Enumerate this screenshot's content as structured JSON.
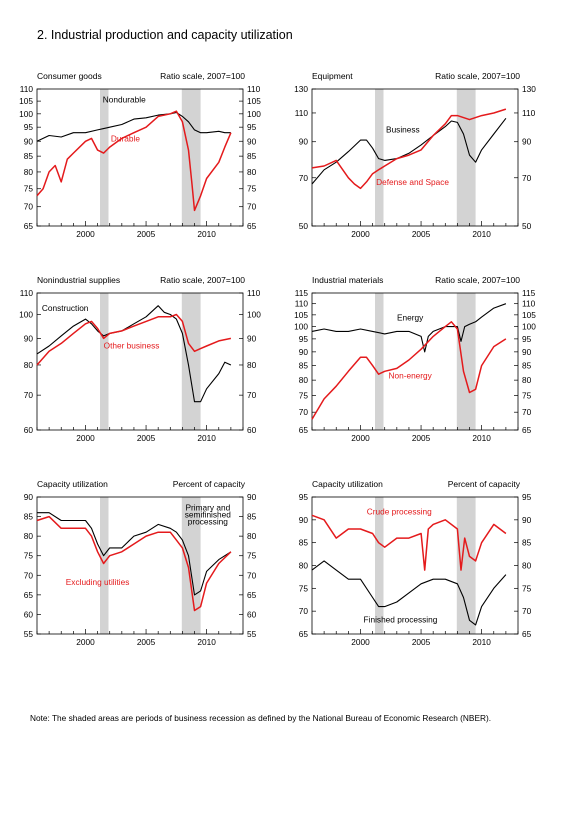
{
  "title": "2.  Industrial production and capacity utilization",
  "note": "Note: The shaded areas are periods of business recession as defined by the National Bureau of Economic Research (NBER).",
  "colors": {
    "black_series": "#000000",
    "red_series": "#e41a1c",
    "recession_shade": "#d3d3d3"
  },
  "chart_data": [
    {
      "id": "consumer-goods",
      "type": "line",
      "title": "Consumer goods",
      "scale_label": "Ratio scale, 2007=100",
      "xlim": [
        1996,
        2013
      ],
      "ylim": [
        65,
        110
      ],
      "log_scale": true,
      "xticks": [
        2000,
        2005,
        2010
      ],
      "xtick_labels": [
        "2000",
        "2005",
        "2010"
      ],
      "yticks": [
        65,
        70,
        75,
        80,
        85,
        90,
        95,
        100,
        105,
        110
      ],
      "ytick_labels": [
        "65",
        "70",
        "75",
        "80",
        "85",
        "90",
        "95",
        "100",
        "105",
        "110"
      ],
      "recessions": [
        [
          2001.2,
          2001.9
        ],
        [
          2007.95,
          2009.5
        ]
      ],
      "series": [
        {
          "name": "Nondurable",
          "color": "#000000",
          "x": [
            1996,
            1997,
            1998,
            1999,
            2000,
            2001,
            2001.5,
            2002,
            2003,
            2004,
            2005,
            2006,
            2007,
            2007.5,
            2008,
            2008.5,
            2009,
            2009.5,
            2010,
            2011,
            2011.5,
            2012
          ],
          "y": [
            90,
            92,
            91.5,
            93,
            93,
            94,
            94.5,
            95,
            96,
            98,
            98.5,
            99.5,
            100,
            100.5,
            99,
            97,
            94,
            93,
            93,
            93.5,
            93,
            93
          ]
        },
        {
          "name": "Durable",
          "color": "#e41a1c",
          "x": [
            1996,
            1996.5,
            1997,
            1997.5,
            1998,
            1998.5,
            1999,
            2000,
            2000.5,
            2001,
            2001.5,
            2002,
            2003,
            2004,
            2005,
            2006,
            2007,
            2007.5,
            2008,
            2008.5,
            2008.8,
            2009,
            2009.5,
            2010,
            2011,
            2011.5,
            2012
          ],
          "y": [
            73,
            75,
            80,
            82,
            77,
            84,
            86,
            90,
            91,
            87,
            86,
            88,
            91,
            93,
            95,
            99,
            100,
            101,
            97,
            87,
            76,
            69,
            73,
            78,
            83,
            88,
            93
          ]
        }
      ],
      "labels": [
        {
          "text": "Nondurable",
          "color": "#000000",
          "x": 2003.2,
          "y": 104.5
        },
        {
          "text": "Durable",
          "color": "#e41a1c",
          "x": 2003.3,
          "y": 90
        }
      ]
    },
    {
      "id": "equipment",
      "type": "line",
      "title": "Equipment",
      "scale_label": "Ratio scale, 2007=100",
      "xlim": [
        1996,
        2013
      ],
      "ylim": [
        50,
        130
      ],
      "log_scale": true,
      "xticks": [
        2000,
        2005,
        2010
      ],
      "xtick_labels": [
        "2000",
        "2005",
        "2010"
      ],
      "yticks": [
        50,
        70,
        90,
        110,
        130
      ],
      "ytick_labels": [
        "50",
        "70",
        "90",
        "110",
        "130"
      ],
      "recessions": [
        [
          2001.2,
          2001.9
        ],
        [
          2007.95,
          2009.5
        ]
      ],
      "series": [
        {
          "name": "Business",
          "color": "#000000",
          "x": [
            1996,
            1997,
            1998,
            1999,
            2000,
            2000.5,
            2001,
            2001.5,
            2002,
            2003,
            2004,
            2005,
            2006,
            2007,
            2007.5,
            2008,
            2008.5,
            2009,
            2009.5,
            2010,
            2011,
            2012
          ],
          "y": [
            67,
            74,
            78,
            84,
            91,
            91,
            86,
            80,
            79,
            80,
            83,
            88,
            94,
            100,
            104,
            103,
            95,
            82,
            78,
            85,
            95,
            106
          ]
        },
        {
          "name": "Defense and Space",
          "color": "#e41a1c",
          "x": [
            1996,
            1997,
            1998,
            1999,
            1999.5,
            2000,
            2000.5,
            2001,
            2001.5,
            2002,
            2003,
            2004,
            2005,
            2006,
            2007,
            2007.5,
            2008,
            2009,
            2010,
            2011,
            2012
          ],
          "y": [
            75,
            76,
            79,
            70,
            67,
            65,
            68,
            72,
            74,
            76,
            80,
            82,
            85,
            94,
            102,
            108,
            108,
            105,
            108,
            110,
            113
          ]
        }
      ],
      "labels": [
        {
          "text": "Business",
          "color": "#000000",
          "x": 2003.5,
          "y": 96
        },
        {
          "text": "Defense and Space",
          "color": "#e41a1c",
          "x": 2004.3,
          "y": 66.5
        }
      ]
    },
    {
      "id": "nonindustrial-supplies",
      "type": "line",
      "title": "Nonindustrial supplies",
      "scale_label": "Ratio scale, 2007=100",
      "xlim": [
        1996,
        2013
      ],
      "ylim": [
        60,
        110
      ],
      "log_scale": true,
      "xticks": [
        2000,
        2005,
        2010
      ],
      "xtick_labels": [
        "2000",
        "2005",
        "2010"
      ],
      "yticks": [
        60,
        70,
        80,
        90,
        100,
        110
      ],
      "ytick_labels": [
        "60",
        "70",
        "80",
        "90",
        "100",
        "110"
      ],
      "recessions": [
        [
          2001.2,
          2001.9
        ],
        [
          2007.95,
          2009.5
        ]
      ],
      "series": [
        {
          "name": "Construction",
          "color": "#000000",
          "x": [
            1996,
            1997,
            1998,
            1999,
            2000,
            2000.5,
            2001,
            2001.5,
            2002,
            2003,
            2004,
            2005,
            2006,
            2006.5,
            2007,
            2007.5,
            2008,
            2008.5,
            2009,
            2009.5,
            2010,
            2011,
            2011.5,
            2012
          ],
          "y": [
            84,
            87,
            91,
            95,
            98,
            96,
            93,
            91,
            92,
            93,
            96,
            99,
            104,
            101,
            100,
            98,
            92,
            80,
            68,
            68,
            72,
            77,
            81,
            80
          ]
        },
        {
          "name": "Other business",
          "color": "#e41a1c",
          "x": [
            1996,
            1997,
            1998,
            1999,
            2000,
            2000.5,
            2001,
            2001.5,
            2002,
            2003,
            2004,
            2005,
            2006,
            2007,
            2007.5,
            2008,
            2008.5,
            2009,
            2009.5,
            2010,
            2011,
            2012
          ],
          "y": [
            80,
            85,
            88,
            92,
            96,
            97,
            94,
            90,
            92,
            93,
            95,
            97,
            99,
            99,
            100,
            97,
            88,
            85,
            86,
            87,
            89,
            90
          ]
        }
      ],
      "labels": [
        {
          "text": "Construction",
          "color": "#000000",
          "x": 1996.4,
          "y": 101.5,
          "align": "start"
        },
        {
          "text": "Other business",
          "color": "#e41a1c",
          "x": 2003.8,
          "y": 86
        }
      ]
    },
    {
      "id": "industrial-materials",
      "type": "line",
      "title": "Industrial materials",
      "scale_label": "Ratio scale, 2007=100",
      "xlim": [
        1996,
        2013
      ],
      "ylim": [
        65,
        115
      ],
      "log_scale": true,
      "xticks": [
        2000,
        2005,
        2010
      ],
      "xtick_labels": [
        "2000",
        "2005",
        "2010"
      ],
      "yticks": [
        65,
        70,
        75,
        80,
        85,
        90,
        95,
        100,
        105,
        110,
        115
      ],
      "ytick_labels": [
        "65",
        "70",
        "75",
        "80",
        "85",
        "90",
        "95",
        "100",
        "105",
        "110",
        "115"
      ],
      "recessions": [
        [
          2001.2,
          2001.9
        ],
        [
          2007.95,
          2009.5
        ]
      ],
      "series": [
        {
          "name": "Energy",
          "color": "#000000",
          "x": [
            1996,
            1997,
            1998,
            1999,
            2000,
            2001,
            2002,
            2003,
            2004,
            2005,
            2005.3,
            2005.6,
            2006,
            2007,
            2008,
            2008.3,
            2008.6,
            2009,
            2009.5,
            2010,
            2011,
            2012
          ],
          "y": [
            98,
            99,
            98,
            98,
            99,
            98,
            97,
            98,
            98,
            96,
            90,
            96,
            98,
            100,
            100,
            94,
            100,
            101,
            102,
            104,
            108,
            110
          ]
        },
        {
          "name": "Non-energy",
          "color": "#e41a1c",
          "x": [
            1996,
            1997,
            1998,
            1999,
            2000,
            2000.5,
            2001,
            2001.5,
            2002,
            2003,
            2004,
            2005,
            2006,
            2007,
            2007.5,
            2008,
            2008.5,
            2009,
            2009.5,
            2010,
            2011,
            2012
          ],
          "y": [
            68,
            74,
            78,
            83,
            88,
            88,
            85,
            82,
            83,
            84,
            87,
            91,
            96,
            100,
            102,
            99,
            83,
            76,
            77,
            85,
            92,
            95
          ]
        }
      ],
      "labels": [
        {
          "text": "Energy",
          "color": "#000000",
          "x": 2004.1,
          "y": 102.5
        },
        {
          "text": "Non-energy",
          "color": "#e41a1c",
          "x": 2004.1,
          "y": 80.5
        }
      ]
    },
    {
      "id": "capacity-utilization-left",
      "type": "line",
      "title": "Capacity utilization",
      "scale_label": "Percent of capacity",
      "xlim": [
        1996,
        2013
      ],
      "ylim": [
        55,
        90
      ],
      "log_scale": false,
      "xticks": [
        2000,
        2005,
        2010
      ],
      "xtick_labels": [
        "2000",
        "2005",
        "2010"
      ],
      "yticks": [
        55,
        60,
        65,
        70,
        75,
        80,
        85,
        90
      ],
      "ytick_labels": [
        "55",
        "60",
        "65",
        "70",
        "75",
        "80",
        "85",
        "90"
      ],
      "recessions": [
        [
          2001.2,
          2001.9
        ],
        [
          2007.95,
          2009.5
        ]
      ],
      "series": [
        {
          "name": "Primary and semifinished processing",
          "color": "#000000",
          "x": [
            1996,
            1997,
            1998,
            1999,
            2000,
            2000.5,
            2001,
            2001.5,
            2002,
            2003,
            2004,
            2005,
            2006,
            2007,
            2007.5,
            2008,
            2008.5,
            2009,
            2009.5,
            2010,
            2011,
            2012
          ],
          "y": [
            86,
            86,
            84,
            84,
            84,
            82,
            78,
            75,
            77,
            77,
            80,
            81,
            83,
            82,
            81,
            79,
            75,
            65,
            66,
            71,
            74,
            76
          ]
        },
        {
          "name": "Excluding utilities",
          "color": "#e41a1c",
          "x": [
            1996,
            1997,
            1998,
            1999,
            2000,
            2000.5,
            2001,
            2001.5,
            2002,
            2003,
            2004,
            2005,
            2006,
            2007,
            2007.5,
            2008,
            2008.5,
            2009,
            2009.5,
            2010,
            2011,
            2012
          ],
          "y": [
            84,
            85,
            82,
            82,
            82,
            80,
            76,
            73,
            75,
            76,
            78,
            80,
            81,
            81,
            79,
            77,
            72,
            61,
            62,
            68,
            73,
            76
          ]
        }
      ],
      "labels": [
        {
          "text": "Primary and",
          "color": "#000000",
          "x": 2010.1,
          "y": 86.6
        },
        {
          "text": "semifinished",
          "color": "#000000",
          "x": 2010.1,
          "y": 84.8
        },
        {
          "text": "processing",
          "color": "#000000",
          "x": 2010.1,
          "y": 83.0
        },
        {
          "text": "Excluding utilities",
          "color": "#e41a1c",
          "x": 2001.0,
          "y": 67.5
        }
      ]
    },
    {
      "id": "capacity-utilization-right",
      "type": "line",
      "title": "Capacity utilization",
      "scale_label": "Percent of capacity",
      "xlim": [
        1996,
        2013
      ],
      "ylim": [
        65,
        95
      ],
      "log_scale": false,
      "xticks": [
        2000,
        2005,
        2010
      ],
      "xtick_labels": [
        "2000",
        "2005",
        "2010"
      ],
      "yticks": [
        65,
        70,
        75,
        80,
        85,
        90,
        95
      ],
      "ytick_labels": [
        "65",
        "70",
        "75",
        "80",
        "85",
        "90",
        "95"
      ],
      "recessions": [
        [
          2001.2,
          2001.9
        ],
        [
          2007.95,
          2009.5
        ]
      ],
      "series": [
        {
          "name": "Crude processing",
          "color": "#e41a1c",
          "x": [
            1996,
            1997,
            1998,
            1999,
            2000,
            2001,
            2001.5,
            2002,
            2003,
            2004,
            2005,
            2005.3,
            2005.6,
            2006,
            2007,
            2008,
            2008.3,
            2008.6,
            2009,
            2009.5,
            2010,
            2011,
            2012
          ],
          "y": [
            91,
            90,
            86,
            88,
            88,
            87,
            85,
            84,
            86,
            86,
            87,
            79,
            88,
            89,
            90,
            88,
            79,
            86,
            82,
            81,
            85,
            89,
            87
          ]
        },
        {
          "name": "Finished processing",
          "color": "#000000",
          "x": [
            1996,
            1997,
            1998,
            1999,
            2000,
            2001,
            2001.5,
            2002,
            2003,
            2004,
            2005,
            2006,
            2007,
            2008,
            2008.5,
            2009,
            2009.5,
            2010,
            2011,
            2012
          ],
          "y": [
            79,
            81,
            79,
            77,
            77,
            73,
            71,
            71,
            72,
            74,
            76,
            77,
            77,
            76,
            73,
            68,
            67,
            71,
            75,
            78
          ]
        }
      ],
      "labels": [
        {
          "text": "Crude processing",
          "color": "#e41a1c",
          "x": 2003.2,
          "y": 91.2
        },
        {
          "text": "Finished processing",
          "color": "#000000",
          "x": 2003.3,
          "y": 67.5
        }
      ]
    }
  ]
}
